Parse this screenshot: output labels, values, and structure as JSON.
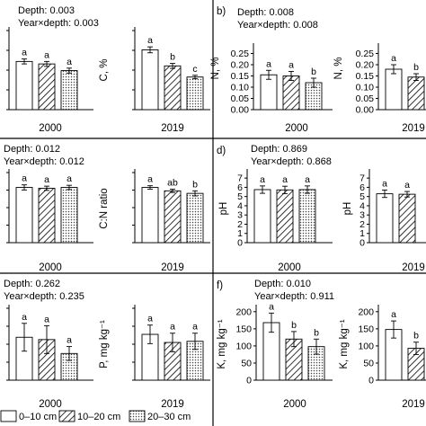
{
  "panels": {
    "b": {
      "label": "b)"
    },
    "d": {
      "label": "d)"
    },
    "f": {
      "label": "f)"
    }
  },
  "legend": [
    {
      "label": "0–10 cm",
      "pattern": "white"
    },
    {
      "label": "10–20 cm",
      "pattern": "hatch"
    },
    {
      "label": "20–30 cm",
      "pattern": "dots"
    }
  ],
  "chart_data": [
    {
      "type": "bar",
      "panel": "a-2000",
      "stats": [
        "Depth: 0.003",
        "Year×depth: 0.003"
      ],
      "xlabel": "2000",
      "ylabel": "",
      "ticks": [],
      "ylim": [
        0,
        3.2
      ],
      "values": [
        1.95,
        1.85,
        1.58
      ],
      "errors": [
        0.1,
        0.1,
        0.1
      ],
      "letters": [
        "a",
        "a",
        "a"
      ]
    },
    {
      "type": "bar",
      "panel": "a-2019",
      "stats": [],
      "xlabel": "2019",
      "ylabel": "C, %",
      "ticks": [],
      "ylim": [
        0,
        3.2
      ],
      "values": [
        2.42,
        1.77,
        1.32
      ],
      "errors": [
        0.12,
        0.1,
        0.07
      ],
      "letters": [
        "a",
        "b",
        "c"
      ]
    },
    {
      "type": "bar",
      "panel": "b-2000",
      "stats": [
        "Depth: 0.008",
        "Year×depth: 0.008"
      ],
      "xlabel": "2000",
      "ylabel": "N, %",
      "ticks": [
        "0.00",
        "0.05",
        "0.10",
        "0.15",
        "0.20",
        "0.25"
      ],
      "ylim": [
        0,
        0.28
      ],
      "values": [
        0.155,
        0.15,
        0.12
      ],
      "errors": [
        0.02,
        0.02,
        0.02
      ],
      "letters": [
        "a",
        "a",
        "b"
      ]
    },
    {
      "type": "bar",
      "panel": "b-2019",
      "stats": [],
      "xlabel": "2019",
      "ylabel": "N, %",
      "ticks": [
        "0.00",
        "0.05",
        "0.10",
        "0.15",
        "0.20",
        "0.25"
      ],
      "ylim": [
        0,
        0.28
      ],
      "values": [
        0.18,
        0.145
      ],
      "errors": [
        0.02,
        0.015
      ],
      "letters": [
        "a",
        "b"
      ]
    },
    {
      "type": "bar",
      "panel": "c-2000",
      "stats": [
        "Depth: 0.012",
        "Year×depth: 0.012"
      ],
      "xlabel": "2000",
      "ylabel": "",
      "ticks": [],
      "ylim": [
        0,
        16.5
      ],
      "values": [
        13.0,
        12.8,
        13.0
      ],
      "errors": [
        0.6,
        0.5,
        0.5
      ],
      "letters": [
        "a",
        "a",
        "a"
      ]
    },
    {
      "type": "bar",
      "panel": "c-2019",
      "stats": [],
      "xlabel": "2019",
      "ylabel": "C:N ratio",
      "ticks": [],
      "ylim": [
        0,
        16.5
      ],
      "values": [
        13.0,
        12.2,
        11.6
      ],
      "errors": [
        0.4,
        0.4,
        0.6
      ],
      "letters": [
        "a",
        "ab",
        "b"
      ]
    },
    {
      "type": "bar",
      "panel": "d-2000",
      "stats": [
        "Depth: 0.869",
        "Year×depth: 0.868"
      ],
      "xlabel": "2000",
      "ylabel": "pH",
      "ticks": [
        "0",
        "1",
        "2",
        "3",
        "4",
        "5",
        "6",
        "7"
      ],
      "ylim": [
        0,
        7.6
      ],
      "values": [
        5.75,
        5.72,
        5.75
      ],
      "errors": [
        0.4,
        0.4,
        0.4
      ],
      "letters": [
        "a",
        "a",
        "a"
      ]
    },
    {
      "type": "bar",
      "panel": "d-2019",
      "stats": [],
      "xlabel": "2019",
      "ylabel": "pH",
      "ticks": [
        "0",
        "1",
        "2",
        "3",
        "4",
        "5",
        "6",
        "7"
      ],
      "ylim": [
        0,
        7.6
      ],
      "values": [
        5.3,
        5.25
      ],
      "errors": [
        0.4,
        0.3
      ],
      "letters": [
        "a",
        "a"
      ]
    },
    {
      "type": "bar",
      "panel": "e-2000",
      "stats": [
        "Depth: 0.262",
        "Year×depth: 0.235"
      ],
      "xlabel": "2000",
      "ylabel": "",
      "ticks": [],
      "ylim": [
        0,
        62
      ],
      "values": [
        37,
        35,
        23
      ],
      "errors": [
        12,
        12,
        6
      ],
      "letters": [
        "a",
        "a",
        "a"
      ]
    },
    {
      "type": "bar",
      "panel": "e-2019",
      "stats": [],
      "xlabel": "2019",
      "ylabel": "P, mg kg⁻¹",
      "ticks": [],
      "ylim": [
        0,
        62
      ],
      "values": [
        39.5,
        32.5,
        33.5
      ],
      "errors": [
        8,
        8,
        7
      ],
      "letters": [
        "a",
        "a",
        "a"
      ]
    },
    {
      "type": "bar",
      "panel": "f-2000",
      "stats": [
        "Depth: 0.010",
        "Year×depth: 0.911"
      ],
      "xlabel": "2000",
      "ylabel": "K, mg kg⁻¹",
      "ticks": [
        "0",
        "50",
        "100",
        "150",
        "200"
      ],
      "ylim": [
        0,
        210
      ],
      "values": [
        168,
        120,
        98
      ],
      "errors": [
        28,
        22,
        22
      ],
      "letters": [
        "a",
        "b",
        "b"
      ]
    },
    {
      "type": "bar",
      "panel": "f-2019",
      "stats": [],
      "xlabel": "2019",
      "ylabel": "K, mg kg⁻¹",
      "ticks": [
        "0",
        "50",
        "100",
        "150",
        "200"
      ],
      "ylim": [
        0,
        210
      ],
      "values": [
        148,
        93
      ],
      "errors": [
        25,
        18
      ],
      "letters": [
        "a",
        "b"
      ]
    }
  ]
}
